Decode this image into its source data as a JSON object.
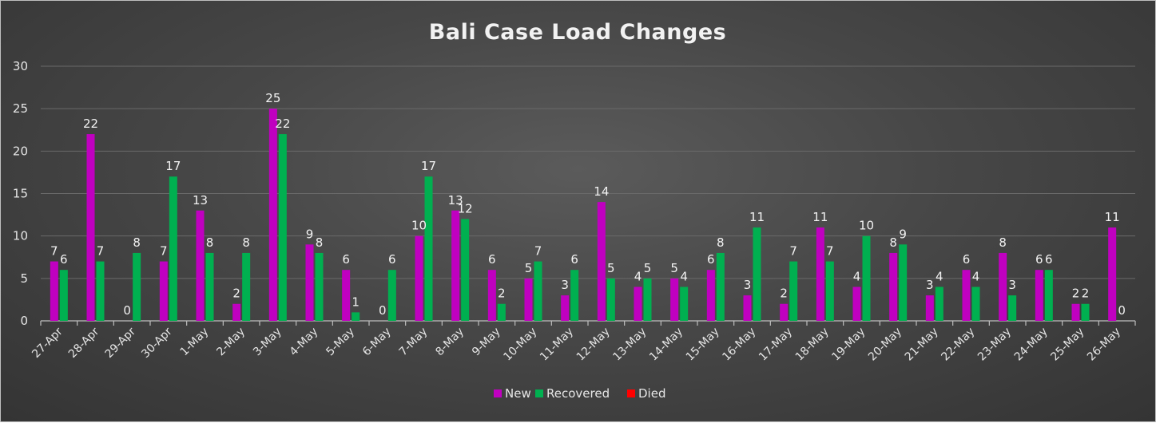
{
  "chart_data": {
    "type": "bar",
    "title": "Bali Case Load Changes",
    "categories": [
      "27-Apr",
      "28-Apr",
      "29-Apr",
      "30-Apr",
      "1-May",
      "2-May",
      "3-May",
      "4-May",
      "5-May",
      "6-May",
      "7-May",
      "8-May",
      "9-May",
      "10-May",
      "11-May",
      "12-May",
      "13-May",
      "14-May",
      "15-May",
      "16-May",
      "17-May",
      "18-May",
      "19-May",
      "20-May",
      "21-May",
      "22-May",
      "23-May",
      "24-May",
      "25-May",
      "26-May"
    ],
    "series": [
      {
        "name": "New",
        "color": "#c000c0",
        "values": [
          7,
          22,
          0,
          7,
          13,
          2,
          25,
          9,
          6,
          0,
          10,
          13,
          6,
          5,
          3,
          14,
          4,
          5,
          6,
          3,
          2,
          11,
          4,
          8,
          3,
          6,
          8,
          6,
          2,
          11
        ],
        "labels": [
          "7",
          "22",
          "0",
          "7",
          "13",
          "2",
          "25",
          "9",
          "6",
          "0",
          "10",
          "13",
          "6",
          "5",
          "3",
          "14",
          "4",
          "5",
          "6",
          "3",
          "2",
          "11",
          "4",
          "8",
          "3",
          "6",
          "8",
          "6",
          "2",
          "11"
        ]
      },
      {
        "name": "Recovered",
        "color": "#00b050",
        "values": [
          6,
          7,
          8,
          17,
          8,
          8,
          22,
          8,
          1,
          6,
          17,
          12,
          2,
          7,
          6,
          5,
          5,
          4,
          8,
          11,
          7,
          7,
          10,
          9,
          4,
          4,
          3,
          6,
          2,
          0
        ],
        "labels": [
          "6",
          "7",
          "8",
          "17",
          "8",
          "8",
          "22",
          "8",
          "1",
          "6",
          "17",
          "12",
          "2",
          "7",
          "6",
          "5",
          "5",
          "4",
          "8",
          "11",
          "7",
          "7",
          "10",
          "9",
          "4",
          "4",
          "3",
          "6",
          "2",
          "0"
        ]
      },
      {
        "name": "Died",
        "color": "#ff0000",
        "values": [
          0,
          0,
          0,
          0,
          0,
          0,
          0,
          0,
          0,
          0,
          0,
          0,
          0,
          0,
          0,
          0,
          0,
          0,
          0,
          0,
          0,
          0,
          0,
          0,
          0,
          0,
          0,
          0,
          0,
          0
        ]
      }
    ],
    "y_ticks": [
      "0",
      "5",
      "10",
      "15",
      "20",
      "25",
      "30"
    ],
    "ylim": [
      0,
      30
    ],
    "grid": true,
    "legend_position": "bottom"
  }
}
